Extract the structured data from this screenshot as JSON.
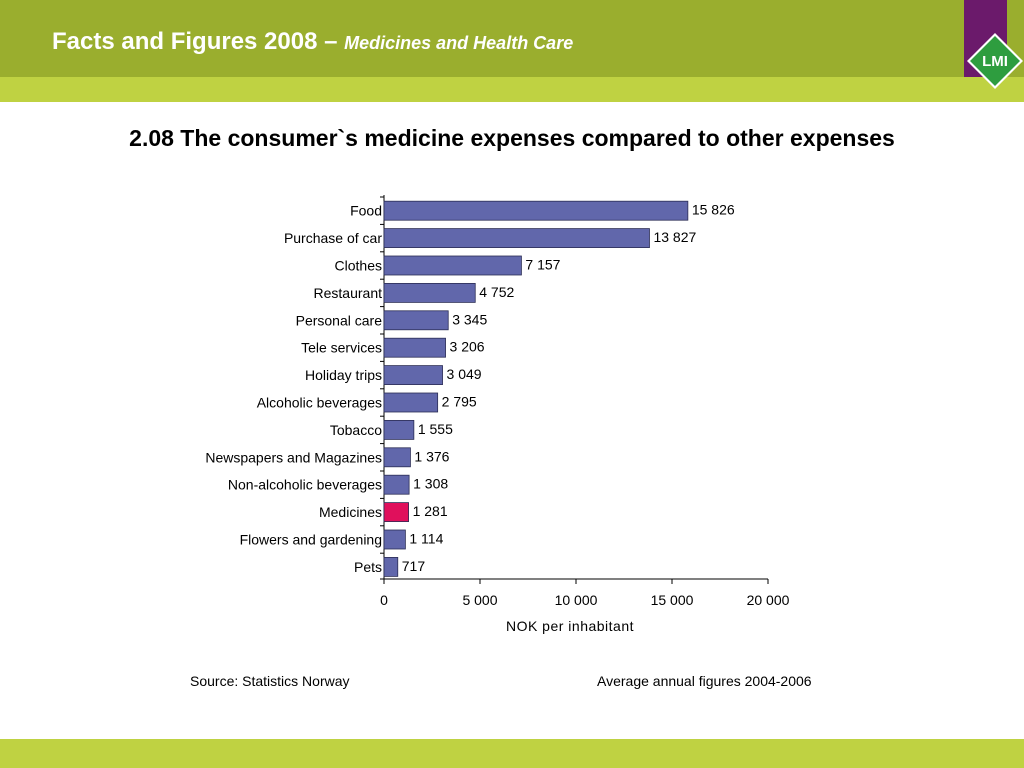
{
  "header": {
    "title": "Facts and Figures 2008 –",
    "subtitle": "Medicines and Health Care",
    "logo_text": "LMI"
  },
  "slide_title": "2.08 The consumer`s medicine expenses compared to other expenses",
  "chart_data": {
    "type": "bar",
    "orientation": "horizontal",
    "title": "2.08 The consumer`s medicine expenses compared to other expenses",
    "categories": [
      "Food",
      "Purchase of car",
      "Clothes",
      "Restaurant",
      "Personal care",
      "Tele services",
      "Holiday trips",
      "Alcoholic beverages",
      "Tobacco",
      "Newspapers and Magazines",
      "Non-alcoholic beverages",
      "Medicines",
      "Flowers and gardening",
      "Pets"
    ],
    "values": [
      15826,
      13827,
      7157,
      4752,
      3345,
      3206,
      3049,
      2795,
      1555,
      1376,
      1308,
      1281,
      1114,
      717
    ],
    "value_labels": [
      "15 826",
      "13 827",
      "7 157",
      "4 752",
      "3 345",
      "3 206",
      "3 049",
      "2 795",
      "1 555",
      "1 376",
      "1 308",
      "1 281",
      "1 114",
      "717"
    ],
    "highlight_category": "Medicines",
    "xlabel": "NOK per inhabitant",
    "ylabel": "",
    "xlim": [
      0,
      20000
    ],
    "xticks": [
      0,
      5000,
      10000,
      15000,
      20000
    ],
    "xtick_labels": [
      "0",
      "5 000",
      "10 000",
      "15 000",
      "20 000"
    ],
    "grid": false,
    "colors": {
      "bar": "#6167ab",
      "highlight": "#e0105c",
      "bar_edge": "#2b2d55"
    }
  },
  "footer": {
    "source": "Source: Statistics Norway",
    "period": "Average annual figures 2004-2006"
  },
  "colors": {
    "header_green": "#9aae2e",
    "stripe_lime": "#bfd242",
    "logo_purple": "#6b1a6b",
    "logo_green": "#2e9d3f"
  }
}
